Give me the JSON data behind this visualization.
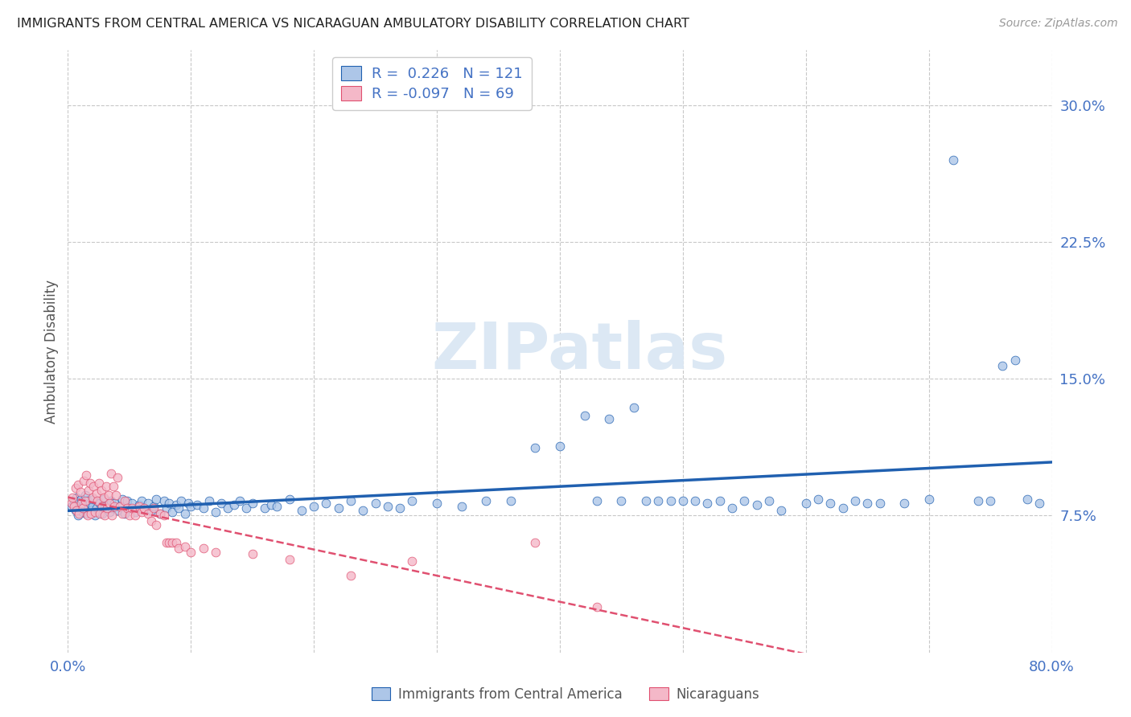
{
  "title": "IMMIGRANTS FROM CENTRAL AMERICA VS NICARAGUAN AMBULATORY DISABILITY CORRELATION CHART",
  "source": "Source: ZipAtlas.com",
  "ylabel": "Ambulatory Disability",
  "blue_R": 0.226,
  "blue_N": 121,
  "pink_R": -0.097,
  "pink_N": 69,
  "blue_color": "#adc6e8",
  "pink_color": "#f4b8c8",
  "blue_line_color": "#2060b0",
  "pink_line_color": "#e05070",
  "title_color": "#222222",
  "axis_label_color": "#555555",
  "tick_color": "#4472C4",
  "grid_color": "#c8c8c8",
  "watermark_color": "#dce8f4",
  "watermark": "ZIPatlas",
  "xlim": [
    0.0,
    0.8
  ],
  "ylim": [
    0.0,
    0.33
  ],
  "yticks": [
    0.075,
    0.15,
    0.225,
    0.3
  ],
  "ytick_labels": [
    "7.5%",
    "15.0%",
    "22.5%",
    "30.0%"
  ],
  "xticks": [
    0.0,
    0.1,
    0.2,
    0.3,
    0.4,
    0.5,
    0.6,
    0.7,
    0.8
  ],
  "xtick_labels_show": [
    "0.0%",
    "",
    "",
    "",
    "",
    "",
    "",
    "",
    "80.0%"
  ],
  "legend_label_blue": "Immigrants from Central America",
  "legend_label_pink": "Nicaraguans",
  "blue_x": [
    0.003,
    0.005,
    0.006,
    0.007,
    0.008,
    0.009,
    0.01,
    0.011,
    0.012,
    0.013,
    0.014,
    0.015,
    0.016,
    0.017,
    0.018,
    0.019,
    0.02,
    0.021,
    0.022,
    0.023,
    0.024,
    0.025,
    0.026,
    0.027,
    0.028,
    0.029,
    0.03,
    0.032,
    0.034,
    0.035,
    0.036,
    0.038,
    0.04,
    0.042,
    0.044,
    0.046,
    0.048,
    0.05,
    0.052,
    0.055,
    0.058,
    0.06,
    0.062,
    0.065,
    0.068,
    0.07,
    0.072,
    0.075,
    0.078,
    0.08,
    0.082,
    0.085,
    0.088,
    0.09,
    0.092,
    0.095,
    0.098,
    0.1,
    0.105,
    0.11,
    0.115,
    0.12,
    0.125,
    0.13,
    0.135,
    0.14,
    0.145,
    0.15,
    0.16,
    0.165,
    0.17,
    0.18,
    0.19,
    0.2,
    0.21,
    0.22,
    0.23,
    0.24,
    0.25,
    0.26,
    0.27,
    0.28,
    0.3,
    0.32,
    0.34,
    0.36,
    0.38,
    0.4,
    0.42,
    0.44,
    0.46,
    0.48,
    0.5,
    0.52,
    0.54,
    0.56,
    0.58,
    0.6,
    0.61,
    0.62,
    0.63,
    0.64,
    0.65,
    0.66,
    0.68,
    0.7,
    0.72,
    0.74,
    0.75,
    0.76,
    0.77,
    0.78,
    0.79,
    0.43,
    0.45,
    0.47,
    0.49,
    0.51,
    0.53,
    0.55,
    0.57
  ],
  "blue_y": [
    0.08,
    0.082,
    0.078,
    0.085,
    0.075,
    0.083,
    0.079,
    0.084,
    0.077,
    0.081,
    0.086,
    0.076,
    0.083,
    0.079,
    0.082,
    0.078,
    0.08,
    0.084,
    0.075,
    0.079,
    0.083,
    0.077,
    0.082,
    0.08,
    0.076,
    0.084,
    0.079,
    0.081,
    0.077,
    0.083,
    0.079,
    0.082,
    0.078,
    0.08,
    0.084,
    0.076,
    0.083,
    0.079,
    0.082,
    0.077,
    0.081,
    0.083,
    0.079,
    0.082,
    0.078,
    0.08,
    0.084,
    0.076,
    0.083,
    0.079,
    0.082,
    0.077,
    0.081,
    0.079,
    0.083,
    0.076,
    0.082,
    0.08,
    0.081,
    0.079,
    0.083,
    0.077,
    0.082,
    0.079,
    0.081,
    0.083,
    0.079,
    0.082,
    0.079,
    0.081,
    0.08,
    0.084,
    0.078,
    0.08,
    0.082,
    0.079,
    0.083,
    0.078,
    0.082,
    0.08,
    0.079,
    0.083,
    0.082,
    0.08,
    0.083,
    0.083,
    0.112,
    0.113,
    0.13,
    0.128,
    0.134,
    0.083,
    0.083,
    0.082,
    0.079,
    0.081,
    0.078,
    0.082,
    0.084,
    0.082,
    0.079,
    0.083,
    0.082,
    0.082,
    0.082,
    0.084,
    0.27,
    0.083,
    0.083,
    0.157,
    0.16,
    0.084,
    0.082,
    0.083,
    0.083,
    0.083,
    0.083,
    0.083,
    0.083,
    0.083,
    0.083
  ],
  "pink_x": [
    0.003,
    0.004,
    0.005,
    0.006,
    0.007,
    0.008,
    0.009,
    0.01,
    0.011,
    0.012,
    0.013,
    0.014,
    0.015,
    0.016,
    0.017,
    0.018,
    0.019,
    0.02,
    0.021,
    0.022,
    0.023,
    0.024,
    0.025,
    0.026,
    0.027,
    0.028,
    0.029,
    0.03,
    0.031,
    0.032,
    0.033,
    0.034,
    0.035,
    0.036,
    0.037,
    0.038,
    0.039,
    0.04,
    0.042,
    0.044,
    0.046,
    0.048,
    0.05,
    0.052,
    0.055,
    0.058,
    0.06,
    0.062,
    0.065,
    0.068,
    0.07,
    0.072,
    0.075,
    0.078,
    0.08,
    0.082,
    0.085,
    0.088,
    0.09,
    0.095,
    0.1,
    0.11,
    0.12,
    0.15,
    0.18,
    0.23,
    0.28,
    0.38,
    0.43
  ],
  "pink_y": [
    0.082,
    0.085,
    0.08,
    0.09,
    0.078,
    0.092,
    0.076,
    0.088,
    0.082,
    0.079,
    0.094,
    0.083,
    0.097,
    0.075,
    0.089,
    0.093,
    0.076,
    0.085,
    0.091,
    0.077,
    0.087,
    0.083,
    0.093,
    0.076,
    0.089,
    0.08,
    0.085,
    0.075,
    0.091,
    0.079,
    0.086,
    0.082,
    0.098,
    0.075,
    0.091,
    0.08,
    0.086,
    0.096,
    0.08,
    0.076,
    0.083,
    0.079,
    0.075,
    0.079,
    0.075,
    0.08,
    0.077,
    0.079,
    0.076,
    0.072,
    0.079,
    0.07,
    0.076,
    0.075,
    0.06,
    0.06,
    0.06,
    0.06,
    0.057,
    0.058,
    0.055,
    0.057,
    0.055,
    0.054,
    0.051,
    0.042,
    0.05,
    0.06,
    0.025
  ]
}
